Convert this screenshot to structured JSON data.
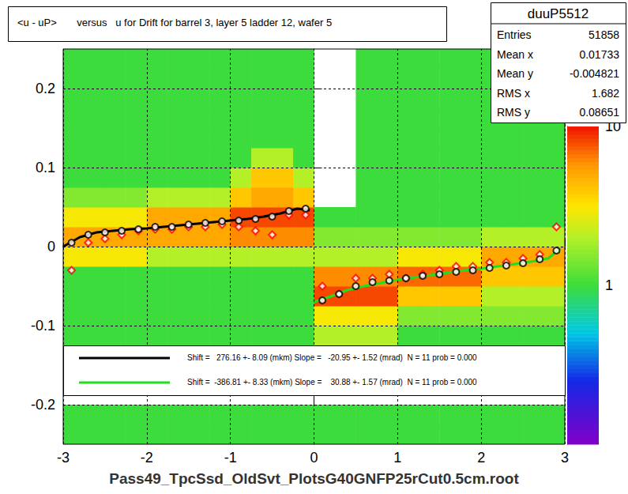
{
  "chart_data": {
    "type": "heatmap",
    "title": "<u - uP>       versus   u for Drift for barrel 3, layer 5 ladder 12, wafer 5",
    "x_label": "Pass49_TpcSsd_OldSvt_PlotsG40GNFP25rCut0.5cm.root",
    "xlim": [
      -3,
      3
    ],
    "xticks": [
      -3,
      -2,
      -1,
      0,
      1,
      2,
      3
    ],
    "ylim": [
      -0.25,
      0.25
    ],
    "yticks": [
      -0.2,
      -0.1,
      0,
      0.1,
      0.2
    ],
    "grid": true,
    "heatmap": {
      "log": true,
      "zlim": [
        0.1,
        10
      ],
      "zticks": [
        1,
        10
      ],
      "x_edges": [
        -3,
        -2.75,
        -2.5,
        -2.25,
        -2,
        -1.75,
        -1.5,
        -1.25,
        -1,
        -0.75,
        -0.5,
        -0.25,
        0,
        0.25,
        0.5,
        0.75,
        1,
        1.25,
        1.5,
        1.75,
        2,
        2.25,
        2.5,
        2.75,
        3
      ],
      "y_edges": [
        -0.25,
        -0.225,
        -0.2,
        -0.175,
        -0.15,
        -0.125,
        -0.1,
        -0.075,
        -0.05,
        -0.025,
        0,
        0.025,
        0.05,
        0.075,
        0.1,
        0.125,
        0.15,
        0.175,
        0.2,
        0.225,
        0.25
      ],
      "counts": [
        [
          1,
          1,
          1,
          1,
          1,
          1,
          1,
          1,
          1,
          1,
          1,
          1,
          1,
          1,
          1,
          1,
          1,
          1,
          1,
          1,
          1,
          1,
          1,
          1
        ],
        [
          1,
          1,
          1,
          1,
          1,
          1,
          1,
          1,
          1,
          1,
          1,
          1,
          1,
          1,
          1,
          1,
          1,
          1,
          1,
          1,
          1,
          1,
          1,
          1
        ],
        [
          0,
          0,
          0,
          0,
          0,
          0,
          0,
          0,
          0,
          0,
          0,
          0,
          0,
          0,
          0,
          0,
          0,
          0,
          0,
          0,
          0,
          0,
          0,
          0
        ],
        [
          0,
          0,
          0,
          0,
          0,
          0,
          0,
          0,
          0,
          0,
          0,
          0,
          0,
          0,
          0,
          0,
          0,
          0,
          0,
          0,
          0,
          0,
          0,
          0
        ],
        [
          0,
          0,
          0,
          0,
          0,
          0,
          0,
          0,
          0,
          0,
          0,
          0,
          0,
          0,
          0,
          0,
          0,
          0,
          0,
          0,
          0,
          0,
          0,
          0
        ],
        [
          1,
          1,
          1,
          1,
          1,
          1,
          1,
          1,
          1,
          1,
          1,
          1,
          2,
          2,
          2,
          2,
          1,
          1,
          1,
          1,
          1,
          1,
          1,
          1
        ],
        [
          1,
          1,
          1,
          1,
          1,
          1,
          1,
          1,
          1,
          1,
          1,
          1,
          3,
          3,
          3,
          3,
          1.5,
          1.5,
          1.5,
          1.5,
          1.5,
          1.5,
          1.5,
          1.5
        ],
        [
          1,
          1,
          1,
          1,
          1,
          1,
          1,
          1,
          1,
          1,
          1,
          1,
          8,
          8,
          8,
          8,
          4,
          4,
          4,
          4,
          2,
          2,
          2,
          2
        ],
        [
          1,
          1,
          1,
          1,
          1,
          1,
          1,
          1,
          1,
          1,
          1,
          1,
          6,
          6,
          6,
          6,
          7,
          7,
          7,
          7,
          4,
          4,
          4,
          4
        ],
        [
          3,
          3,
          3,
          3,
          2,
          2,
          2,
          2,
          2,
          2,
          2,
          2,
          2,
          2,
          2,
          2,
          3,
          3,
          3,
          3,
          5,
          5,
          5,
          5
        ],
        [
          5,
          5,
          5,
          5,
          5,
          5,
          5,
          5,
          6,
          6,
          6,
          6,
          1.5,
          1.5,
          1.5,
          1.5,
          1.5,
          1.5,
          1.5,
          1.5,
          2,
          2,
          2,
          2
        ],
        [
          3,
          3,
          3,
          3,
          5,
          5,
          5,
          5,
          8,
          8,
          8,
          8,
          1,
          1,
          1,
          1,
          1,
          1,
          1,
          1,
          1,
          1,
          1,
          1
        ],
        [
          1.5,
          1.5,
          1.5,
          1.5,
          2,
          2,
          2,
          2,
          4,
          5,
          5,
          4,
          0,
          0,
          1,
          1,
          1,
          1,
          1,
          1,
          1,
          1,
          1,
          1
        ],
        [
          1,
          1,
          1,
          1,
          1,
          1,
          1,
          1,
          2,
          4,
          4,
          2,
          0,
          0,
          1,
          1,
          1,
          1,
          1,
          1,
          1,
          1,
          1,
          1
        ],
        [
          1,
          1,
          1,
          1,
          1,
          1,
          1,
          1,
          1,
          2,
          2,
          1,
          0,
          0,
          1,
          1,
          1,
          1,
          1,
          1,
          1,
          1,
          1,
          1
        ],
        [
          1,
          1,
          1,
          1,
          1,
          1,
          1,
          1,
          1,
          1,
          1,
          1,
          0,
          0,
          1,
          1,
          1,
          1,
          1,
          1,
          1,
          1,
          1,
          1
        ],
        [
          1,
          1,
          1,
          1,
          1,
          1,
          1,
          1,
          1,
          1,
          1,
          1,
          0,
          0,
          1,
          1,
          1,
          1,
          1,
          1,
          1,
          1,
          1,
          1
        ],
        [
          1,
          1,
          1,
          1,
          1,
          1,
          1,
          1,
          1,
          1,
          1,
          1,
          0,
          0,
          1,
          1,
          1,
          1,
          1,
          1,
          1,
          1,
          1,
          1
        ],
        [
          1,
          1,
          1,
          1,
          1,
          1,
          1,
          1,
          1,
          1,
          1,
          1,
          0,
          0,
          1,
          1,
          1,
          1,
          1,
          1,
          1,
          1,
          1,
          1
        ],
        [
          1,
          1,
          1,
          1,
          1,
          1,
          1,
          1,
          1,
          1,
          1,
          1,
          0,
          0,
          1,
          1,
          1,
          1,
          1,
          1,
          1,
          1,
          1,
          1
        ]
      ]
    },
    "series": [
      {
        "type": "scatter",
        "color": "#ff0000",
        "marker": "diamond",
        "x": [
          -2.9,
          -2.7,
          -2.5,
          -2.3,
          -2.1,
          -1.9,
          -1.7,
          -1.5,
          -1.3,
          -1.1,
          -0.9,
          -0.7,
          -0.5,
          -0.3,
          -0.1,
          0.1,
          0.3,
          0.5,
          0.7,
          0.9,
          1.1,
          1.3,
          1.5,
          1.7,
          1.9,
          2.1,
          2.3,
          2.5,
          2.7,
          2.9
        ],
        "values": [
          -0.03,
          0.005,
          0.01,
          0.015,
          0.02,
          0.022,
          0.022,
          0.025,
          0.025,
          0.028,
          0.025,
          0.02,
          0.015,
          0.04,
          0.04,
          -0.05,
          -0.06,
          -0.04,
          -0.04,
          -0.035,
          -0.04,
          -0.035,
          -0.03,
          -0.025,
          -0.025,
          -0.02,
          -0.02,
          -0.015,
          -0.01,
          0.025
        ]
      },
      {
        "type": "scatter",
        "color": "#000000",
        "marker": "circle",
        "x": [
          -2.9,
          -2.7,
          -2.5,
          -2.3,
          -2.1,
          -1.9,
          -1.7,
          -1.5,
          -1.3,
          -1.1,
          -0.9,
          -0.7,
          -0.5,
          -0.3,
          -0.1,
          0.1,
          0.3,
          0.5,
          0.7,
          0.9,
          1.1,
          1.3,
          1.5,
          1.7,
          1.9,
          2.1,
          2.3,
          2.5,
          2.7,
          2.9
        ],
        "values": [
          0.005,
          0.015,
          0.018,
          0.02,
          0.022,
          0.025,
          0.025,
          0.028,
          0.03,
          0.032,
          0.033,
          0.035,
          0.038,
          0.045,
          0.048,
          -0.068,
          -0.06,
          -0.05,
          -0.045,
          -0.043,
          -0.04,
          -0.037,
          -0.035,
          -0.032,
          -0.03,
          -0.027,
          -0.024,
          -0.021,
          -0.016,
          -0.005
        ]
      },
      {
        "type": "line",
        "color": "#000000",
        "marker": "none",
        "line_style": "solid",
        "name": "Shift =   276.16 +- 8.09 (mkm) Slope =   -20.95 +- 1.52 (mrad)  N = 11 prob = 0.000",
        "x": [
          -3,
          -2.8,
          -2.6,
          -2.4,
          -2.2,
          -2,
          -1.8,
          -1.6,
          -1.4,
          -1.2,
          -1,
          -0.8,
          -0.6,
          -0.4,
          -0.2,
          -0.05
        ],
        "values": [
          0.0,
          0.012,
          0.018,
          0.02,
          0.022,
          0.023,
          0.025,
          0.027,
          0.029,
          0.031,
          0.033,
          0.035,
          0.038,
          0.042,
          0.048,
          0.046
        ]
      },
      {
        "type": "line",
        "color": "#22dd22",
        "marker": "none",
        "line_style": "solid",
        "name": "Shift =  -386.81 +- 8.33 (mkm) Slope =    30.88 +- 1.57 (mrad)  N = 11 prob = 0.000",
        "x": [
          0,
          0.2,
          0.4,
          0.6,
          0.8,
          1,
          1.2,
          1.4,
          1.6,
          1.8,
          2,
          2.2,
          2.4,
          2.6,
          2.8,
          2.95
        ],
        "values": [
          -0.07,
          -0.063,
          -0.055,
          -0.05,
          -0.046,
          -0.042,
          -0.039,
          -0.036,
          -0.033,
          -0.03,
          -0.028,
          -0.025,
          -0.022,
          -0.019,
          -0.015,
          -0.002
        ]
      }
    ],
    "stats": {
      "title": "duuP5512",
      "rows": [
        {
          "label": "Entries",
          "value": 51858
        },
        {
          "label": "Mean x",
          "value": 0.01733
        },
        {
          "label": "Mean y",
          "value": -0.004821
        },
        {
          "label": "RMS x",
          "value": 1.682
        },
        {
          "label": "RMS y",
          "value": 0.08651
        }
      ]
    }
  }
}
